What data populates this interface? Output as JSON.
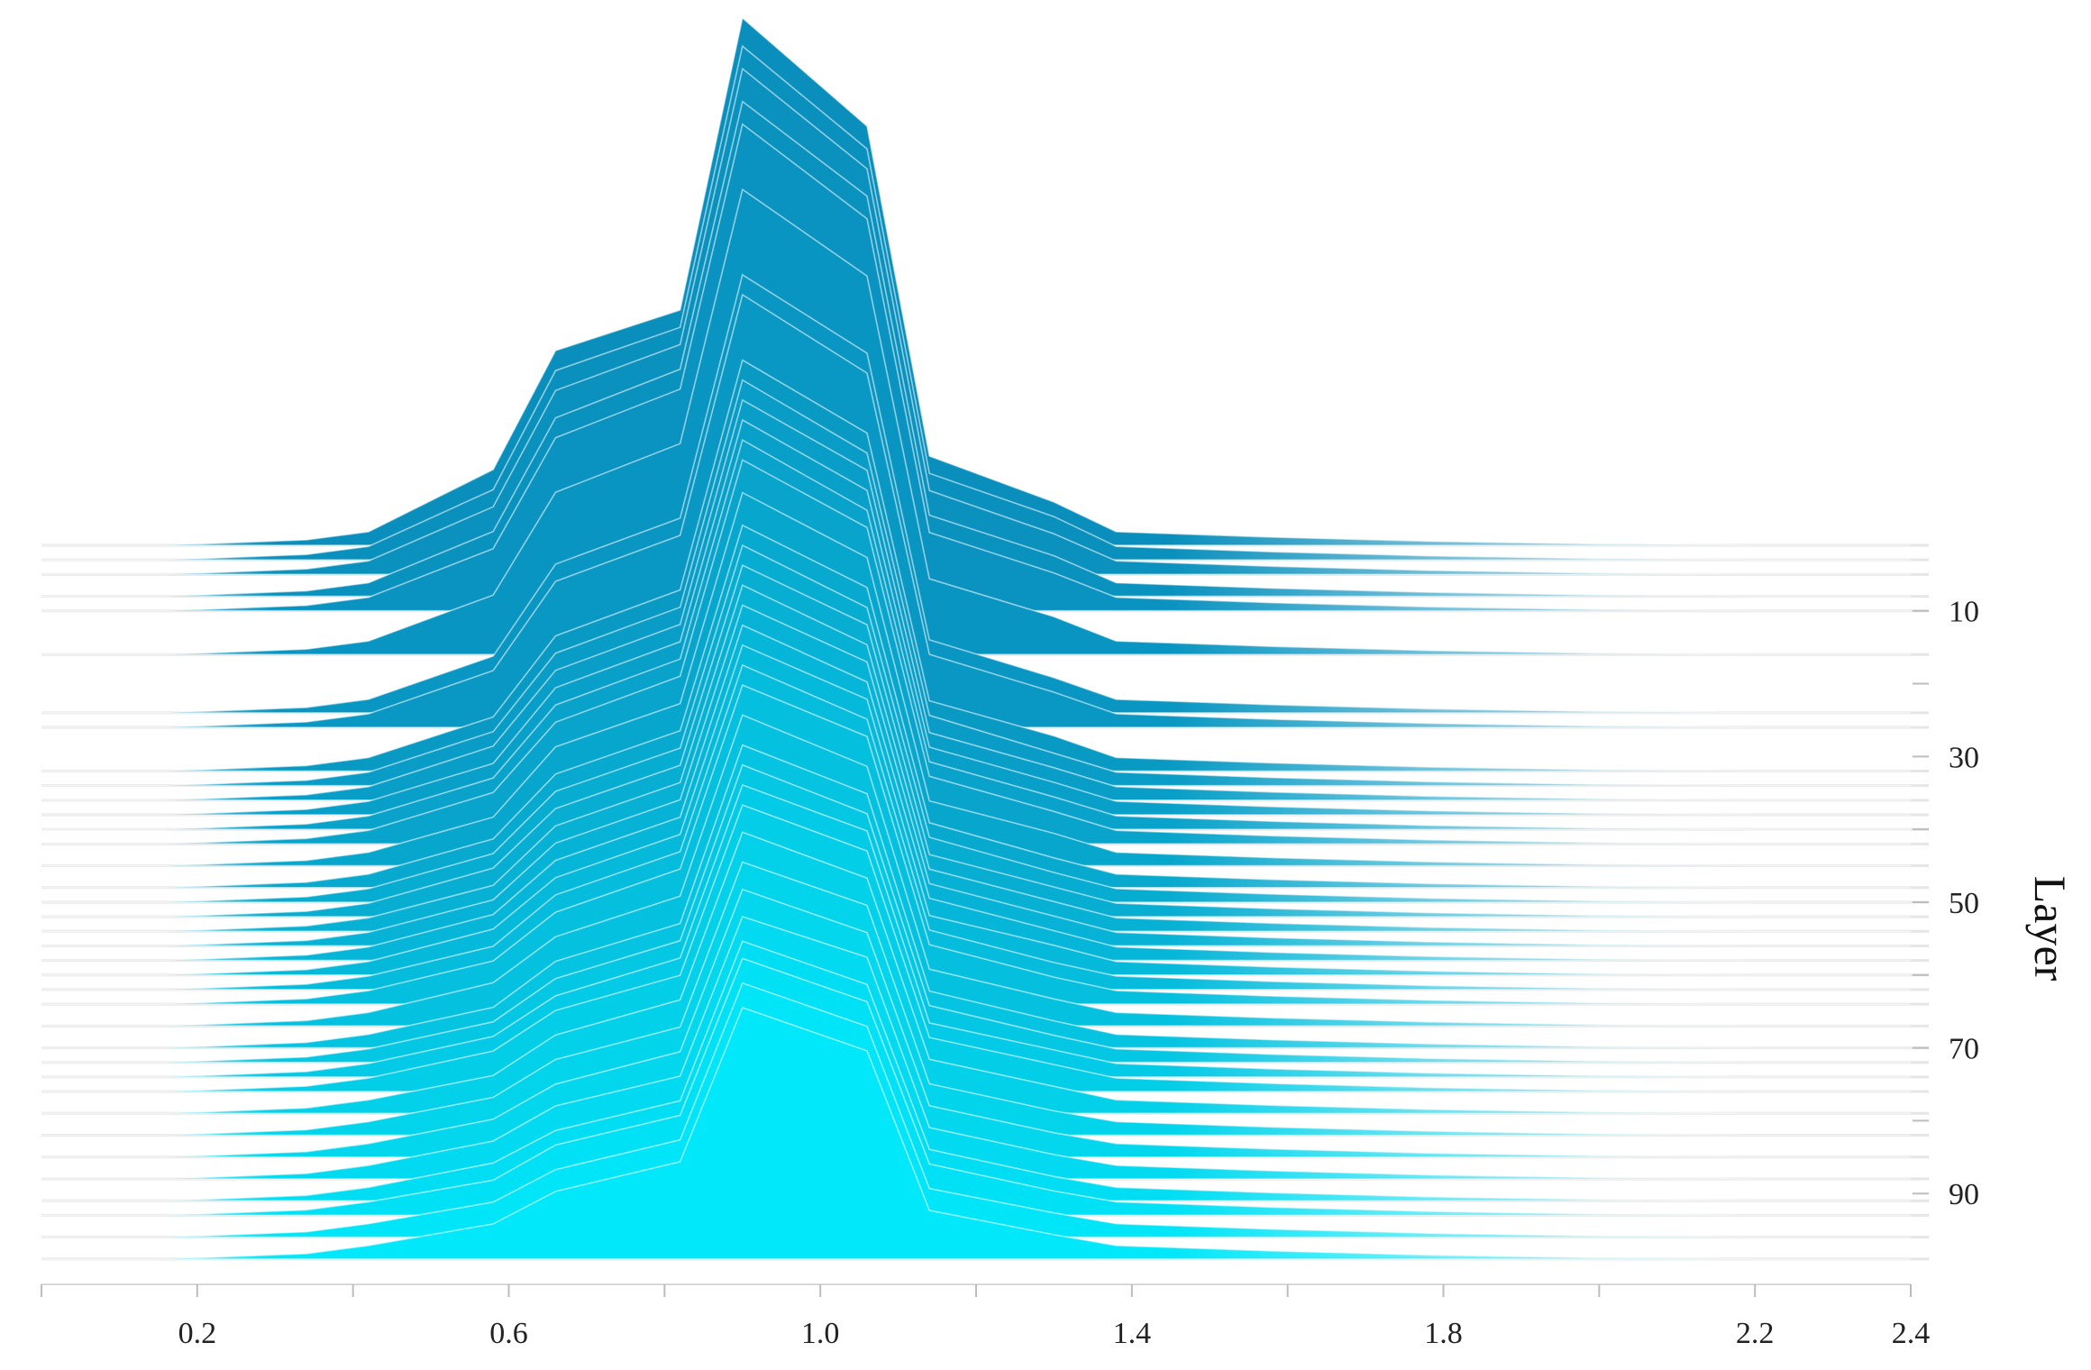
{
  "chart_data": {
    "type": "ridgeline",
    "title": "",
    "xlabel": "",
    "ylabel": "Layer",
    "xlim": [
      0.0,
      2.4
    ],
    "x_ticks": [
      "0.2",
      "0.6",
      "1.0",
      "1.4",
      "1.8",
      "2.2",
      "2.4"
    ],
    "y_ticks": [
      "10",
      "30",
      "50",
      "70",
      "90"
    ],
    "layer_range": [
      1,
      100
    ],
    "grid": false,
    "legend": "none",
    "color_top": "#0a8fbd",
    "color_bottom": "#00e8fa",
    "x": [
      0.0,
      0.16,
      0.34,
      0.42,
      0.58,
      0.66,
      0.82,
      0.9,
      1.06,
      1.14,
      1.3,
      1.38,
      1.58,
      1.78,
      2.0,
      2.2,
      2.4
    ],
    "series": [
      {
        "layer": 1,
        "values": [
          0,
          0,
          0.02,
          0.05,
          0.28,
          0.72,
          0.87,
          1.95,
          1.55,
          0.33,
          0.16,
          0.05,
          0.03,
          0.015,
          0.005,
          0,
          0
        ]
      },
      {
        "layer": 3,
        "values": [
          0,
          0,
          0.02,
          0.05,
          0.26,
          0.7,
          0.86,
          1.9,
          1.52,
          0.32,
          0.16,
          0.05,
          0.03,
          0.015,
          0.005,
          0,
          0
        ]
      },
      {
        "layer": 5,
        "values": [
          0,
          0,
          0.02,
          0.05,
          0.25,
          0.68,
          0.85,
          1.87,
          1.5,
          0.31,
          0.15,
          0.05,
          0.03,
          0.015,
          0.005,
          0,
          0
        ]
      },
      {
        "layer": 8,
        "values": [
          0,
          0,
          0.02,
          0.05,
          0.24,
          0.66,
          0.84,
          1.83,
          1.48,
          0.3,
          0.15,
          0.05,
          0.03,
          0.015,
          0.005,
          0,
          0
        ]
      },
      {
        "layer": 10,
        "values": [
          0,
          0,
          0.02,
          0.05,
          0.23,
          0.64,
          0.82,
          1.8,
          1.45,
          0.29,
          0.14,
          0.05,
          0.03,
          0.015,
          0.005,
          0,
          0
        ]
      },
      {
        "layer": 16,
        "values": [
          0,
          0,
          0.02,
          0.05,
          0.22,
          0.6,
          0.78,
          1.72,
          1.4,
          0.28,
          0.14,
          0.05,
          0.03,
          0.015,
          0.005,
          0,
          0
        ]
      },
      {
        "layer": 24,
        "values": [
          0,
          0,
          0.02,
          0.05,
          0.21,
          0.55,
          0.72,
          1.62,
          1.33,
          0.27,
          0.13,
          0.05,
          0.03,
          0.015,
          0.005,
          0,
          0
        ]
      },
      {
        "layer": 26,
        "values": [
          0,
          0,
          0.02,
          0.05,
          0.21,
          0.54,
          0.71,
          1.6,
          1.31,
          0.27,
          0.13,
          0.05,
          0.03,
          0.015,
          0.005,
          0,
          0
        ]
      },
      {
        "layer": 32,
        "values": [
          0,
          0,
          0.02,
          0.05,
          0.2,
          0.5,
          0.67,
          1.52,
          1.25,
          0.26,
          0.13,
          0.05,
          0.03,
          0.015,
          0.005,
          0,
          0
        ]
      },
      {
        "layer": 34,
        "values": [
          0,
          0,
          0.02,
          0.05,
          0.2,
          0.49,
          0.66,
          1.5,
          1.23,
          0.26,
          0.12,
          0.05,
          0.03,
          0.015,
          0.005,
          0,
          0
        ]
      },
      {
        "layer": 36,
        "values": [
          0,
          0,
          0.02,
          0.05,
          0.2,
          0.48,
          0.65,
          1.48,
          1.22,
          0.25,
          0.12,
          0.05,
          0.03,
          0.015,
          0.005,
          0,
          0
        ]
      },
      {
        "layer": 38,
        "values": [
          0,
          0,
          0.02,
          0.05,
          0.19,
          0.47,
          0.64,
          1.46,
          1.2,
          0.25,
          0.12,
          0.05,
          0.03,
          0.015,
          0.005,
          0,
          0
        ]
      },
      {
        "layer": 40,
        "values": [
          0,
          0,
          0.02,
          0.05,
          0.19,
          0.46,
          0.63,
          1.44,
          1.18,
          0.25,
          0.12,
          0.05,
          0.03,
          0.015,
          0.005,
          0,
          0
        ]
      },
      {
        "layer": 42,
        "values": [
          0,
          0,
          0.02,
          0.05,
          0.19,
          0.45,
          0.62,
          1.42,
          1.17,
          0.25,
          0.12,
          0.05,
          0.03,
          0.015,
          0.005,
          0,
          0
        ]
      },
      {
        "layer": 45,
        "values": [
          0,
          0,
          0.02,
          0.05,
          0.18,
          0.44,
          0.6,
          1.38,
          1.14,
          0.24,
          0.12,
          0.05,
          0.03,
          0.015,
          0.005,
          0,
          0
        ]
      },
      {
        "layer": 48,
        "values": [
          0,
          0,
          0.02,
          0.05,
          0.18,
          0.42,
          0.58,
          1.34,
          1.11,
          0.24,
          0.11,
          0.05,
          0.03,
          0.015,
          0.005,
          0,
          0
        ]
      },
      {
        "layer": 50,
        "values": [
          0,
          0,
          0.02,
          0.05,
          0.18,
          0.41,
          0.57,
          1.32,
          1.09,
          0.24,
          0.11,
          0.05,
          0.03,
          0.015,
          0.005,
          0,
          0
        ]
      },
      {
        "layer": 52,
        "values": [
          0,
          0,
          0.02,
          0.05,
          0.18,
          0.4,
          0.56,
          1.3,
          1.08,
          0.23,
          0.11,
          0.05,
          0.03,
          0.015,
          0.005,
          0,
          0
        ]
      },
      {
        "layer": 54,
        "values": [
          0,
          0,
          0.02,
          0.05,
          0.17,
          0.39,
          0.55,
          1.28,
          1.06,
          0.23,
          0.11,
          0.05,
          0.03,
          0.015,
          0.005,
          0,
          0
        ]
      },
      {
        "layer": 56,
        "values": [
          0,
          0,
          0.02,
          0.05,
          0.17,
          0.38,
          0.54,
          1.26,
          1.05,
          0.23,
          0.11,
          0.05,
          0.03,
          0.015,
          0.005,
          0,
          0
        ]
      },
      {
        "layer": 58,
        "values": [
          0,
          0,
          0.02,
          0.05,
          0.17,
          0.37,
          0.53,
          1.24,
          1.03,
          0.23,
          0.11,
          0.05,
          0.03,
          0.015,
          0.005,
          0,
          0
        ]
      },
      {
        "layer": 60,
        "values": [
          0,
          0,
          0.02,
          0.05,
          0.17,
          0.36,
          0.52,
          1.22,
          1.02,
          0.22,
          0.11,
          0.05,
          0.03,
          0.015,
          0.005,
          0,
          0
        ]
      },
      {
        "layer": 62,
        "values": [
          0,
          0,
          0.02,
          0.05,
          0.16,
          0.35,
          0.51,
          1.2,
          1.0,
          0.22,
          0.1,
          0.05,
          0.03,
          0.015,
          0.005,
          0,
          0
        ]
      },
      {
        "layer": 64,
        "values": [
          0,
          0,
          0.02,
          0.05,
          0.16,
          0.34,
          0.5,
          1.18,
          0.99,
          0.22,
          0.1,
          0.05,
          0.03,
          0.015,
          0.005,
          0,
          0
        ]
      },
      {
        "layer": 67,
        "values": [
          0,
          0,
          0.02,
          0.05,
          0.16,
          0.33,
          0.48,
          1.15,
          0.96,
          0.21,
          0.1,
          0.05,
          0.03,
          0.015,
          0.005,
          0,
          0
        ]
      },
      {
        "layer": 70,
        "values": [
          0,
          0,
          0.02,
          0.05,
          0.15,
          0.32,
          0.46,
          1.12,
          0.94,
          0.21,
          0.1,
          0.05,
          0.03,
          0.015,
          0.005,
          0,
          0
        ]
      },
      {
        "layer": 72,
        "values": [
          0,
          0,
          0.02,
          0.05,
          0.15,
          0.31,
          0.45,
          1.1,
          0.92,
          0.21,
          0.1,
          0.05,
          0.03,
          0.015,
          0.005,
          0,
          0
        ]
      },
      {
        "layer": 74,
        "values": [
          0,
          0,
          0.02,
          0.05,
          0.15,
          0.3,
          0.44,
          1.08,
          0.91,
          0.2,
          0.1,
          0.05,
          0.03,
          0.015,
          0.005,
          0,
          0
        ]
      },
      {
        "layer": 76,
        "values": [
          0,
          0,
          0.02,
          0.05,
          0.15,
          0.3,
          0.43,
          1.06,
          0.89,
          0.2,
          0.1,
          0.05,
          0.03,
          0.015,
          0.005,
          0,
          0
        ]
      },
      {
        "layer": 79,
        "values": [
          0,
          0,
          0.02,
          0.05,
          0.14,
          0.29,
          0.42,
          1.04,
          0.87,
          0.2,
          0.1,
          0.05,
          0.03,
          0.015,
          0.005,
          0,
          0
        ]
      },
      {
        "layer": 82,
        "values": [
          0,
          0,
          0.02,
          0.05,
          0.14,
          0.28,
          0.4,
          1.01,
          0.85,
          0.19,
          0.09,
          0.05,
          0.03,
          0.015,
          0.005,
          0,
          0
        ]
      },
      {
        "layer": 85,
        "values": [
          0,
          0,
          0.02,
          0.05,
          0.14,
          0.27,
          0.39,
          0.99,
          0.83,
          0.19,
          0.09,
          0.05,
          0.03,
          0.015,
          0.005,
          0,
          0
        ]
      },
      {
        "layer": 88,
        "values": [
          0,
          0,
          0.02,
          0.05,
          0.14,
          0.27,
          0.38,
          0.97,
          0.82,
          0.19,
          0.09,
          0.05,
          0.03,
          0.015,
          0.005,
          0,
          0
        ]
      },
      {
        "layer": 91,
        "values": [
          0,
          0,
          0.02,
          0.05,
          0.14,
          0.26,
          0.37,
          0.96,
          0.8,
          0.19,
          0.09,
          0.05,
          0.03,
          0.015,
          0.005,
          0,
          0
        ]
      },
      {
        "layer": 93,
        "values": [
          0,
          0,
          0.02,
          0.05,
          0.13,
          0.26,
          0.37,
          0.95,
          0.79,
          0.19,
          0.09,
          0.05,
          0.03,
          0.015,
          0.005,
          0,
          0
        ]
      },
      {
        "layer": 96,
        "values": [
          0,
          0,
          0.02,
          0.05,
          0.13,
          0.25,
          0.36,
          0.94,
          0.78,
          0.18,
          0.09,
          0.05,
          0.03,
          0.015,
          0.005,
          0,
          0
        ]
      },
      {
        "layer": 99,
        "values": [
          0,
          0,
          0.02,
          0.05,
          0.13,
          0.25,
          0.36,
          0.93,
          0.77,
          0.18,
          0.09,
          0.05,
          0.03,
          0.015,
          0.005,
          0,
          0
        ]
      }
    ]
  }
}
